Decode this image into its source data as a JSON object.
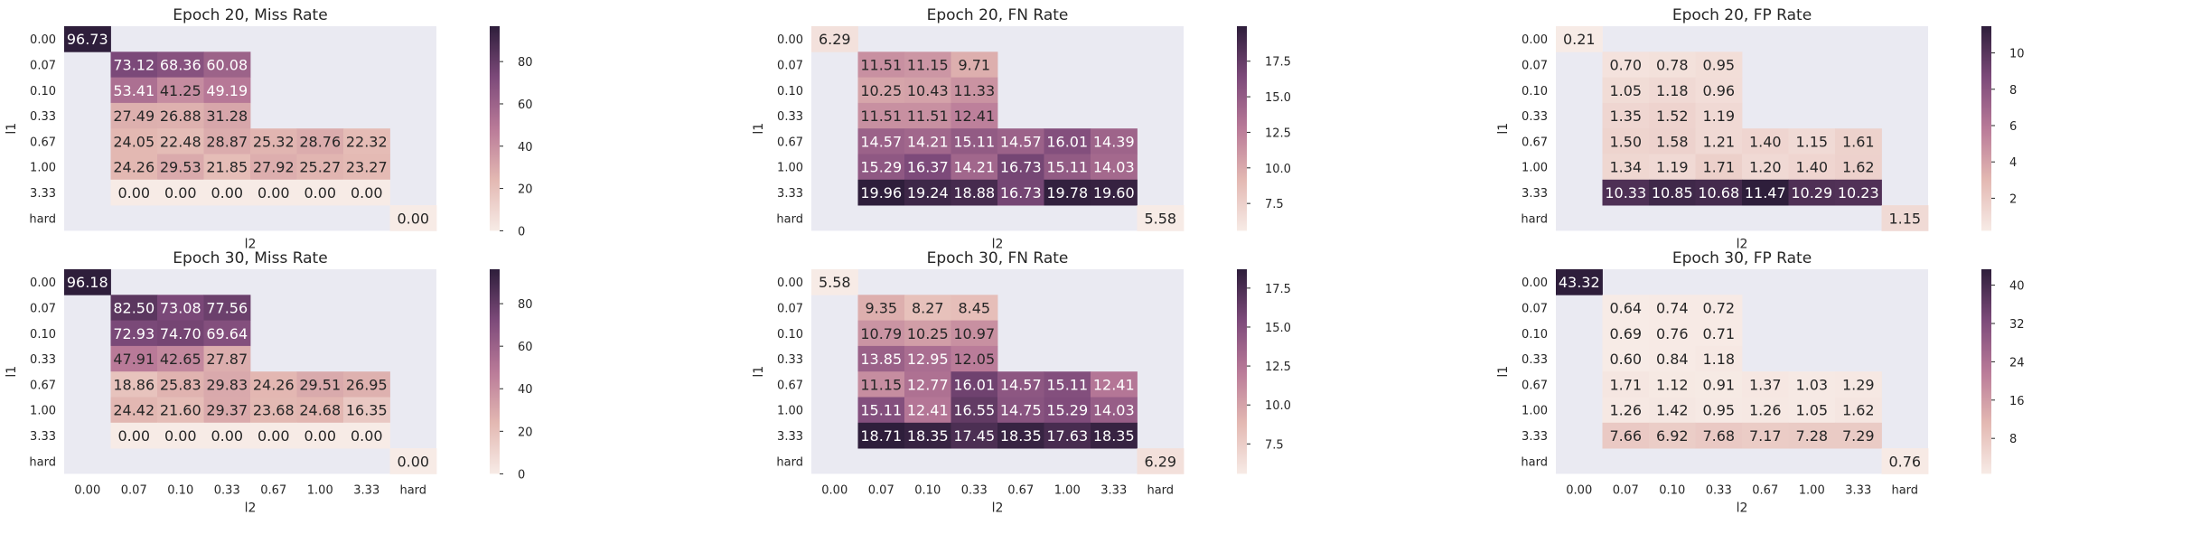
{
  "chart_data": [
    {
      "type": "heatmap",
      "title": "Epoch 20, Miss Rate",
      "xlabel": "l2",
      "ylabel": "l1",
      "x_categories": [
        "0.00",
        "0.07",
        "0.10",
        "0.33",
        "0.67",
        "1.00",
        "3.33",
        "hard"
      ],
      "y_categories": [
        "0.00",
        "0.07",
        "0.10",
        "0.33",
        "0.67",
        "1.00",
        "3.33",
        "hard"
      ],
      "values": [
        [
          96.73,
          null,
          null,
          null,
          null,
          null,
          null,
          null
        ],
        [
          null,
          73.12,
          68.36,
          60.08,
          null,
          null,
          null,
          null
        ],
        [
          null,
          53.41,
          41.25,
          49.19,
          null,
          null,
          null,
          null
        ],
        [
          null,
          27.49,
          26.88,
          31.28,
          null,
          null,
          null,
          null
        ],
        [
          null,
          24.05,
          22.48,
          28.87,
          25.32,
          28.76,
          22.32,
          null
        ],
        [
          null,
          24.26,
          29.53,
          21.85,
          27.92,
          25.27,
          23.27,
          null
        ],
        [
          null,
          0.0,
          0.0,
          0.0,
          0.0,
          0.0,
          0.0,
          null
        ],
        [
          null,
          null,
          null,
          null,
          null,
          null,
          null,
          0.0
        ]
      ],
      "labels": [
        [
          "96.73",
          "",
          "",
          "",
          "",
          "",
          "",
          ""
        ],
        [
          "",
          "73.12",
          "68.36",
          "60.08",
          "",
          "",
          "",
          ""
        ],
        [
          "",
          "53.41",
          "41.25",
          "49.19",
          "",
          "",
          "",
          ""
        ],
        [
          "",
          "27.49",
          "26.88",
          "31.28",
          "",
          "",
          "",
          ""
        ],
        [
          "",
          "24.05",
          "22.48",
          "28.87",
          "25.32",
          "28.76",
          "22.32",
          ""
        ],
        [
          "",
          "24.26",
          "29.53",
          "21.85",
          "27.92",
          "25.27",
          "23.27",
          ""
        ],
        [
          "",
          "0.00",
          "0.00",
          "0.00",
          "0.00",
          "0.00",
          "0.00",
          ""
        ],
        [
          "",
          "",
          "",
          "",
          "",
          "",
          "",
          "0.00"
        ]
      ],
      "vmin": 0,
      "vmax": 96.73,
      "colorbar_ticks": [
        0,
        20,
        40,
        60,
        80
      ],
      "colorbar_labels": [
        "0",
        "20",
        "40",
        "60",
        "80"
      ],
      "show_xticks": false
    },
    {
      "type": "heatmap",
      "title": "Epoch 20, FN Rate",
      "xlabel": "l2",
      "ylabel": "l1",
      "x_categories": [
        "0.00",
        "0.07",
        "0.10",
        "0.33",
        "0.67",
        "1.00",
        "3.33",
        "hard"
      ],
      "y_categories": [
        "0.00",
        "0.07",
        "0.10",
        "0.33",
        "0.67",
        "1.00",
        "3.33",
        "hard"
      ],
      "values": [
        [
          6.29,
          null,
          null,
          null,
          null,
          null,
          null,
          null
        ],
        [
          null,
          11.51,
          11.15,
          9.71,
          null,
          null,
          null,
          null
        ],
        [
          null,
          10.25,
          10.43,
          11.33,
          null,
          null,
          null,
          null
        ],
        [
          null,
          11.51,
          11.51,
          12.41,
          null,
          null,
          null,
          null
        ],
        [
          null,
          14.57,
          14.21,
          15.11,
          14.57,
          16.01,
          14.39,
          null
        ],
        [
          null,
          15.29,
          16.37,
          14.21,
          16.73,
          15.11,
          14.03,
          null
        ],
        [
          null,
          19.96,
          19.24,
          18.88,
          16.73,
          19.78,
          19.6,
          null
        ],
        [
          null,
          null,
          null,
          null,
          null,
          null,
          null,
          5.58
        ]
      ],
      "labels": [
        [
          "6.29",
          "",
          "",
          "",
          "",
          "",
          "",
          ""
        ],
        [
          "",
          "11.51",
          "11.15",
          "9.71",
          "",
          "",
          "",
          ""
        ],
        [
          "",
          "10.25",
          "10.43",
          "11.33",
          "",
          "",
          "",
          ""
        ],
        [
          "",
          "11.51",
          "11.51",
          "12.41",
          "",
          "",
          "",
          ""
        ],
        [
          "",
          "14.57",
          "14.21",
          "15.11",
          "14.57",
          "16.01",
          "14.39",
          ""
        ],
        [
          "",
          "15.29",
          "16.37",
          "14.21",
          "16.73",
          "15.11",
          "14.03",
          ""
        ],
        [
          "",
          "19.96",
          "19.24",
          "18.88",
          "16.73",
          "19.78",
          "19.60",
          ""
        ],
        [
          "",
          "",
          "",
          "",
          "",
          "",
          "",
          "5.58"
        ]
      ],
      "vmin": 5.58,
      "vmax": 19.96,
      "colorbar_ticks": [
        7.5,
        10.0,
        12.5,
        15.0,
        17.5
      ],
      "colorbar_labels": [
        "7.5",
        "10.0",
        "12.5",
        "15.0",
        "17.5"
      ],
      "show_xticks": false
    },
    {
      "type": "heatmap",
      "title": "Epoch 20, FP Rate",
      "xlabel": "l2",
      "ylabel": "l1",
      "x_categories": [
        "0.00",
        "0.07",
        "0.10",
        "0.33",
        "0.67",
        "1.00",
        "3.33",
        "hard"
      ],
      "y_categories": [
        "0.00",
        "0.07",
        "0.10",
        "0.33",
        "0.67",
        "1.00",
        "3.33",
        "hard"
      ],
      "values": [
        [
          0.21,
          null,
          null,
          null,
          null,
          null,
          null,
          null
        ],
        [
          null,
          0.7,
          0.78,
          0.95,
          null,
          null,
          null,
          null
        ],
        [
          null,
          1.05,
          1.18,
          0.96,
          null,
          null,
          null,
          null
        ],
        [
          null,
          1.35,
          1.52,
          1.19,
          null,
          null,
          null,
          null
        ],
        [
          null,
          1.5,
          1.58,
          1.21,
          1.4,
          1.15,
          1.61,
          null
        ],
        [
          null,
          1.34,
          1.19,
          1.71,
          1.2,
          1.4,
          1.62,
          null
        ],
        [
          null,
          10.33,
          10.85,
          10.68,
          11.47,
          10.29,
          10.23,
          null
        ],
        [
          null,
          null,
          null,
          null,
          null,
          null,
          null,
          1.15
        ]
      ],
      "labels": [
        [
          "0.21",
          "",
          "",
          "",
          "",
          "",
          "",
          ""
        ],
        [
          "",
          "0.70",
          "0.78",
          "0.95",
          "",
          "",
          "",
          ""
        ],
        [
          "",
          "1.05",
          "1.18",
          "0.96",
          "",
          "",
          "",
          ""
        ],
        [
          "",
          "1.35",
          "1.52",
          "1.19",
          "",
          "",
          "",
          ""
        ],
        [
          "",
          "1.50",
          "1.58",
          "1.21",
          "1.40",
          "1.15",
          "1.61",
          ""
        ],
        [
          "",
          "1.34",
          "1.19",
          "1.71",
          "1.20",
          "1.40",
          "1.62",
          ""
        ],
        [
          "",
          "10.33",
          "10.85",
          "10.68",
          "11.47",
          "10.29",
          "10.23",
          ""
        ],
        [
          "",
          "",
          "",
          "",
          "",
          "",
          "",
          "1.15"
        ]
      ],
      "vmin": 0.21,
      "vmax": 11.47,
      "colorbar_ticks": [
        2,
        4,
        6,
        8,
        10
      ],
      "colorbar_labels": [
        "2",
        "4",
        "6",
        "8",
        "10"
      ],
      "show_xticks": false
    },
    {
      "type": "heatmap",
      "title": "Epoch 30, Miss Rate",
      "xlabel": "l2",
      "ylabel": "l1",
      "x_categories": [
        "0.00",
        "0.07",
        "0.10",
        "0.33",
        "0.67",
        "1.00",
        "3.33",
        "hard"
      ],
      "y_categories": [
        "0.00",
        "0.07",
        "0.10",
        "0.33",
        "0.67",
        "1.00",
        "3.33",
        "hard"
      ],
      "values": [
        [
          96.18,
          null,
          null,
          null,
          null,
          null,
          null,
          null
        ],
        [
          null,
          82.5,
          73.08,
          77.56,
          null,
          null,
          null,
          null
        ],
        [
          null,
          72.93,
          74.7,
          69.64,
          null,
          null,
          null,
          null
        ],
        [
          null,
          47.91,
          42.65,
          27.87,
          null,
          null,
          null,
          null
        ],
        [
          null,
          18.86,
          25.83,
          29.83,
          24.26,
          29.51,
          26.95,
          null
        ],
        [
          null,
          24.42,
          21.6,
          29.37,
          23.68,
          24.68,
          16.35,
          null
        ],
        [
          null,
          0.0,
          0.0,
          0.0,
          0.0,
          0.0,
          0.0,
          null
        ],
        [
          null,
          null,
          null,
          null,
          null,
          null,
          null,
          0.0
        ]
      ],
      "labels": [
        [
          "96.18",
          "",
          "",
          "",
          "",
          "",
          "",
          ""
        ],
        [
          "",
          "82.50",
          "73.08",
          "77.56",
          "",
          "",
          "",
          ""
        ],
        [
          "",
          "72.93",
          "74.70",
          "69.64",
          "",
          "",
          "",
          ""
        ],
        [
          "",
          "47.91",
          "42.65",
          "27.87",
          "",
          "",
          "",
          ""
        ],
        [
          "",
          "18.86",
          "25.83",
          "29.83",
          "24.26",
          "29.51",
          "26.95",
          ""
        ],
        [
          "",
          "24.42",
          "21.60",
          "29.37",
          "23.68",
          "24.68",
          "16.35",
          ""
        ],
        [
          "",
          "0.00",
          "0.00",
          "0.00",
          "0.00",
          "0.00",
          "0.00",
          ""
        ],
        [
          "",
          "",
          "",
          "",
          "",
          "",
          "",
          "0.00"
        ]
      ],
      "vmin": 0,
      "vmax": 96.18,
      "colorbar_ticks": [
        0,
        20,
        40,
        60,
        80
      ],
      "colorbar_labels": [
        "0",
        "20",
        "40",
        "60",
        "80"
      ],
      "show_xticks": true
    },
    {
      "type": "heatmap",
      "title": "Epoch 30, FN Rate",
      "xlabel": "l2",
      "ylabel": "l1",
      "x_categories": [
        "0.00",
        "0.07",
        "0.10",
        "0.33",
        "0.67",
        "1.00",
        "3.33",
        "hard"
      ],
      "y_categories": [
        "0.00",
        "0.07",
        "0.10",
        "0.33",
        "0.67",
        "1.00",
        "3.33",
        "hard"
      ],
      "values": [
        [
          5.58,
          null,
          null,
          null,
          null,
          null,
          null,
          null
        ],
        [
          null,
          9.35,
          8.27,
          8.45,
          null,
          null,
          null,
          null
        ],
        [
          null,
          10.79,
          10.25,
          10.97,
          null,
          null,
          null,
          null
        ],
        [
          null,
          13.85,
          12.95,
          12.05,
          null,
          null,
          null,
          null
        ],
        [
          null,
          11.15,
          12.77,
          16.01,
          14.57,
          15.11,
          12.41,
          null
        ],
        [
          null,
          15.11,
          12.41,
          16.55,
          14.75,
          15.29,
          14.03,
          null
        ],
        [
          null,
          18.71,
          18.35,
          17.45,
          18.35,
          17.63,
          18.35,
          null
        ],
        [
          null,
          null,
          null,
          null,
          null,
          null,
          null,
          6.29
        ]
      ],
      "labels": [
        [
          "5.58",
          "",
          "",
          "",
          "",
          "",
          "",
          ""
        ],
        [
          "",
          "9.35",
          "8.27",
          "8.45",
          "",
          "",
          "",
          ""
        ],
        [
          "",
          "10.79",
          "10.25",
          "10.97",
          "",
          "",
          "",
          ""
        ],
        [
          "",
          "13.85",
          "12.95",
          "12.05",
          "",
          "",
          "",
          ""
        ],
        [
          "",
          "11.15",
          "12.77",
          "16.01",
          "14.57",
          "15.11",
          "12.41",
          ""
        ],
        [
          "",
          "15.11",
          "12.41",
          "16.55",
          "14.75",
          "15.29",
          "14.03",
          ""
        ],
        [
          "",
          "18.71",
          "18.35",
          "17.45",
          "18.35",
          "17.63",
          "18.35",
          ""
        ],
        [
          "",
          "",
          "",
          "",
          "",
          "",
          "",
          "6.29"
        ]
      ],
      "vmin": 5.58,
      "vmax": 18.71,
      "colorbar_ticks": [
        7.5,
        10.0,
        12.5,
        15.0,
        17.5
      ],
      "colorbar_labels": [
        "7.5",
        "10.0",
        "12.5",
        "15.0",
        "17.5"
      ],
      "show_xticks": true
    },
    {
      "type": "heatmap",
      "title": "Epoch 30, FP Rate",
      "xlabel": "l2",
      "ylabel": "l1",
      "x_categories": [
        "0.00",
        "0.07",
        "0.10",
        "0.33",
        "0.67",
        "1.00",
        "3.33",
        "hard"
      ],
      "y_categories": [
        "0.00",
        "0.07",
        "0.10",
        "0.33",
        "0.67",
        "1.00",
        "3.33",
        "hard"
      ],
      "values": [
        [
          43.32,
          null,
          null,
          null,
          null,
          null,
          null,
          null
        ],
        [
          null,
          0.64,
          0.74,
          0.72,
          null,
          null,
          null,
          null
        ],
        [
          null,
          0.69,
          0.76,
          0.71,
          null,
          null,
          null,
          null
        ],
        [
          null,
          0.6,
          0.84,
          1.18,
          null,
          null,
          null,
          null
        ],
        [
          null,
          1.71,
          1.12,
          0.91,
          1.37,
          1.03,
          1.29,
          null
        ],
        [
          null,
          1.26,
          1.42,
          0.95,
          1.26,
          1.05,
          1.62,
          null
        ],
        [
          null,
          7.66,
          6.92,
          7.68,
          7.17,
          7.28,
          7.29,
          null
        ],
        [
          null,
          null,
          null,
          null,
          null,
          null,
          null,
          0.76
        ]
      ],
      "labels": [
        [
          "43.32",
          "",
          "",
          "",
          "",
          "",
          "",
          ""
        ],
        [
          "",
          "0.64",
          "0.74",
          "0.72",
          "",
          "",
          "",
          ""
        ],
        [
          "",
          "0.69",
          "0.76",
          "0.71",
          "",
          "",
          "",
          ""
        ],
        [
          "",
          "0.60",
          "0.84",
          "1.18",
          "",
          "",
          "",
          ""
        ],
        [
          "",
          "1.71",
          "1.12",
          "0.91",
          "1.37",
          "1.03",
          "1.29",
          ""
        ],
        [
          "",
          "1.26",
          "1.42",
          "0.95",
          "1.26",
          "1.05",
          "1.62",
          ""
        ],
        [
          "",
          "7.66",
          "6.92",
          "7.68",
          "7.17",
          "7.28",
          "7.29",
          ""
        ],
        [
          "",
          "",
          "",
          "",
          "",
          "",
          "",
          "0.76"
        ]
      ],
      "vmin": 0.6,
      "vmax": 43.32,
      "colorbar_ticks": [
        8,
        16,
        24,
        32,
        40
      ],
      "colorbar_labels": [
        "8",
        "16",
        "24",
        "32",
        "40"
      ],
      "show_xticks": true
    }
  ],
  "colors": {
    "missing": "#eaeaf2",
    "colormap_low": "#f7ebe6",
    "colormap_mid": "#b26e8e",
    "colormap_high": "#2e1e3b",
    "text_dark": "#262626",
    "text_light": "#ffffff"
  }
}
